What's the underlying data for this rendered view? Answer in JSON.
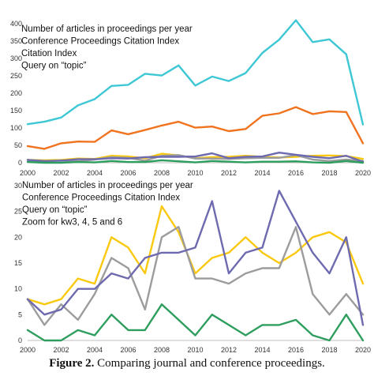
{
  "chart_data": [
    {
      "type": "line",
      "annotations": [
        "Number of articles in proceedings per year",
        "Conference Proceedings Citation Index",
        "Citation Index",
        "Query on “topic”"
      ],
      "ylim": [
        0,
        400
      ],
      "yticks": [
        "0",
        "50",
        "100",
        "150",
        "200",
        "250",
        "300",
        "350",
        "400"
      ],
      "xticks": [
        "2000",
        "2002",
        "2004",
        "2006",
        "2008",
        "2010",
        "2012",
        "2014",
        "2016",
        "2018",
        "2020"
      ],
      "grid": false,
      "x": [
        2000,
        2001,
        2002,
        2003,
        2004,
        2005,
        2006,
        2007,
        2008,
        2009,
        2010,
        2011,
        2012,
        2013,
        2014,
        2015,
        2016,
        2017,
        2018,
        2019,
        2020
      ],
      "series": [
        {
          "color": "#3ec7d4",
          "values": [
            111,
            118,
            130,
            165,
            183,
            221,
            224,
            256,
            251,
            280,
            222,
            248,
            235,
            258,
            316,
            354,
            410,
            347,
            355,
            312,
            110
          ]
        },
        {
          "color": "#f0731f",
          "values": [
            48,
            40,
            56,
            61,
            60,
            93,
            82,
            94,
            107,
            118,
            101,
            104,
            91,
            97,
            135,
            142,
            160,
            140,
            148,
            146,
            56
          ]
        },
        {
          "color": "#fac90f",
          "values": [
            8,
            7,
            8,
            12,
            11,
            20,
            18,
            13,
            26,
            21,
            13,
            16,
            17,
            20,
            17,
            15,
            17,
            20,
            21,
            19,
            11
          ]
        },
        {
          "color": "#9c9c9c",
          "values": [
            8,
            3,
            7,
            4,
            9,
            16,
            14,
            6,
            20,
            22,
            12,
            12,
            11,
            13,
            14,
            14,
            22,
            9,
            5,
            9,
            5
          ]
        },
        {
          "color": "#6e6ab0",
          "values": [
            8,
            5,
            6,
            10,
            10,
            13,
            12,
            16,
            17,
            17,
            18,
            27,
            13,
            17,
            18,
            29,
            23,
            17,
            13,
            20,
            3
          ]
        },
        {
          "color": "#2e9e5e",
          "values": [
            2,
            0,
            0,
            2,
            1,
            5,
            2,
            2,
            7,
            4,
            1,
            5,
            3,
            1,
            3,
            3,
            4,
            1,
            0,
            5,
            0
          ]
        }
      ]
    },
    {
      "type": "line",
      "annotations": [
        "Number of articles in proceedings per year",
        "Conference Proceedings Citation Index",
        "Query on “topic”",
        "Zoom for kw3, 4, 5 and 6"
      ],
      "ylim": [
        0,
        30
      ],
      "yticks": [
        "0",
        "5",
        "10",
        "15",
        "20",
        "25",
        "30"
      ],
      "xticks": [
        "2000",
        "2002",
        "2004",
        "2006",
        "2008",
        "2010",
        "2012",
        "2014",
        "2016",
        "2018",
        "2020"
      ],
      "grid": false,
      "x": [
        2000,
        2001,
        2002,
        2003,
        2004,
        2005,
        2006,
        2007,
        2008,
        2009,
        2010,
        2011,
        2012,
        2013,
        2014,
        2015,
        2016,
        2017,
        2018,
        2019,
        2020
      ],
      "series": [
        {
          "color": "#fac90f",
          "values": [
            8,
            7,
            8,
            12,
            11,
            20,
            18,
            13,
            26,
            21,
            13,
            16,
            17,
            20,
            17,
            15,
            17,
            20,
            21,
            19,
            11
          ]
        },
        {
          "color": "#9c9c9c",
          "values": [
            8,
            3,
            7,
            4,
            9,
            16,
            14,
            6,
            20,
            22,
            12,
            12,
            11,
            13,
            14,
            14,
            22,
            9,
            5,
            9,
            5
          ]
        },
        {
          "color": "#6e6ab0",
          "values": [
            8,
            5,
            6,
            10,
            10,
            13,
            12,
            16,
            17,
            17,
            18,
            27,
            13,
            17,
            18,
            29,
            23,
            17,
            13,
            20,
            3
          ]
        },
        {
          "color": "#2e9e5e",
          "values": [
            2,
            0,
            0,
            2,
            1,
            5,
            2,
            2,
            7,
            4,
            1,
            5,
            3,
            1,
            3,
            3,
            4,
            1,
            0,
            5,
            0
          ]
        }
      ]
    }
  ],
  "caption": {
    "label": "Figure 2.",
    "text": " Comparing journal and conference proceedings."
  }
}
